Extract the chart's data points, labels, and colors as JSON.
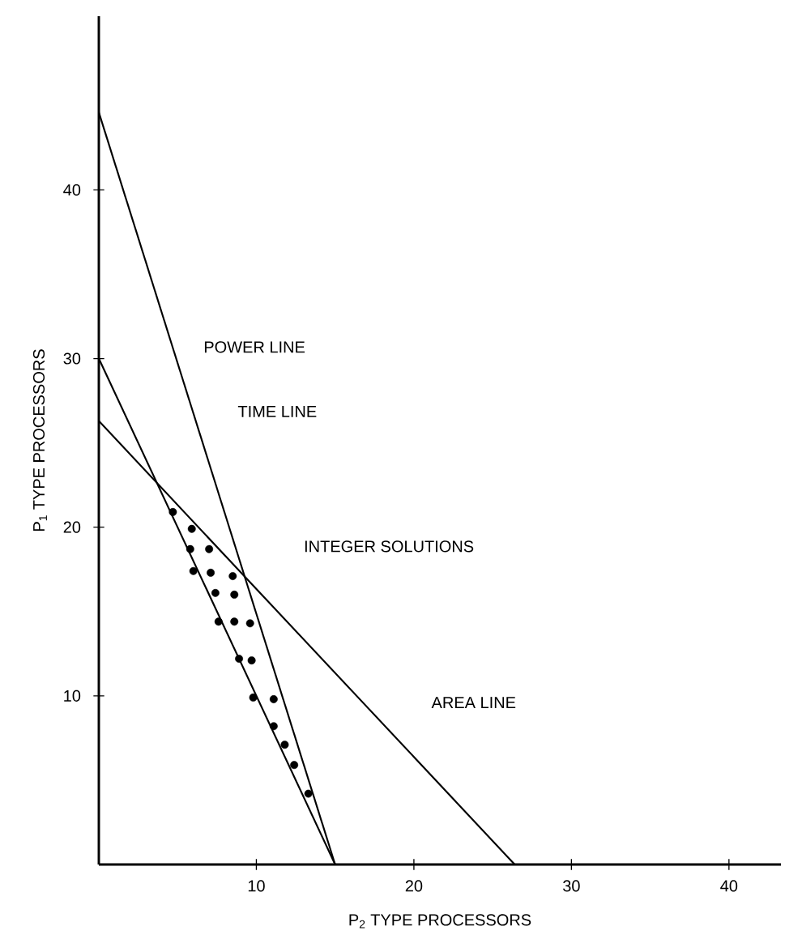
{
  "chart_data": {
    "type": "line",
    "xlabel": "P$_{2}$ TYPE PROCESSORS",
    "ylabel": "P$_{1}$ TYPE PROCESSORS",
    "xlim": [
      0,
      43.3
    ],
    "ylim": [
      0,
      50.3
    ],
    "xticks": [
      10,
      20,
      30,
      40
    ],
    "yticks": [
      10,
      20,
      30,
      40
    ],
    "grid": false,
    "line_style": "solid",
    "series": [
      {
        "color": "#000000",
        "x": [
          0,
          15
        ],
        "values": [
          44.6,
          0
        ]
      },
      {
        "color": "#000000",
        "x": [
          0,
          15
        ],
        "values": [
          30,
          0
        ]
      },
      {
        "color": "#000000",
        "x": [
          0,
          26.4
        ],
        "values": [
          26.3,
          0
        ]
      },
      {
        "type": "scatter",
        "color": "#000000",
        "x": [
          4.7,
          5.9,
          5.8,
          7.0,
          6.0,
          7.1,
          8.5,
          7.4,
          8.6,
          7.6,
          8.6,
          9.6,
          8.9,
          9.7,
          9.8,
          11.1,
          11.1,
          11.8,
          12.4,
          13.3
        ],
        "values": [
          20.9,
          19.9,
          18.7,
          18.7,
          17.4,
          17.3,
          17.1,
          16.1,
          16.0,
          14.4,
          14.4,
          14.3,
          12.2,
          12.1,
          9.9,
          9.8,
          8.2,
          7.1,
          5.9,
          4.2
        ]
      }
    ],
    "annotations": [
      "POWER LINE",
      "TIME LINE",
      "INTEGER SOLUTIONS",
      "AREA LINE"
    ]
  }
}
